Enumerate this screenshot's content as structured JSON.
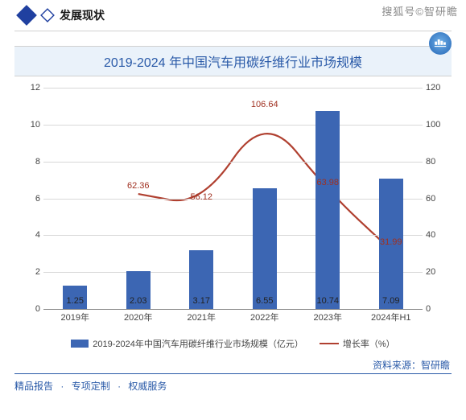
{
  "header": {
    "section_title": "发展现状",
    "watermark": "搜狐号©智研瞻"
  },
  "chart": {
    "type": "bar+line",
    "title": "2019-2024 年中国汽车用碳纤维行业市场规模",
    "categories": [
      "2019年",
      "2020年",
      "2021年",
      "2022年",
      "2023年",
      "2024年H1"
    ],
    "bar_values": [
      1.25,
      2.03,
      3.17,
      6.55,
      10.74,
      7.09
    ],
    "line_values": [
      null,
      62.36,
      56.12,
      106.64,
      63.98,
      31.99
    ],
    "bar_color": "#3c66b3",
    "line_color": "#b04030",
    "left_y": {
      "min": 0,
      "max": 12,
      "ticks": [
        0,
        2,
        4,
        6,
        8,
        10,
        12
      ]
    },
    "right_y": {
      "min": 0,
      "max": 120,
      "ticks": [
        0,
        20,
        40,
        60,
        80,
        100,
        120
      ]
    },
    "background_color": "#ffffff",
    "grid_color": "#d8d8d8",
    "bar_width": 0.38,
    "legend": {
      "bar_label": "2019-2024年中国汽车用碳纤维行业市场规模（亿元）",
      "line_label": "增长率（%）"
    },
    "font_size_axis": 11,
    "font_size_title": 16
  },
  "source": {
    "label": "资料来源：",
    "value": "智研瞻"
  },
  "footer": {
    "items": [
      "精品报告",
      "专项定制",
      "权威服务"
    ],
    "sep": "·"
  }
}
